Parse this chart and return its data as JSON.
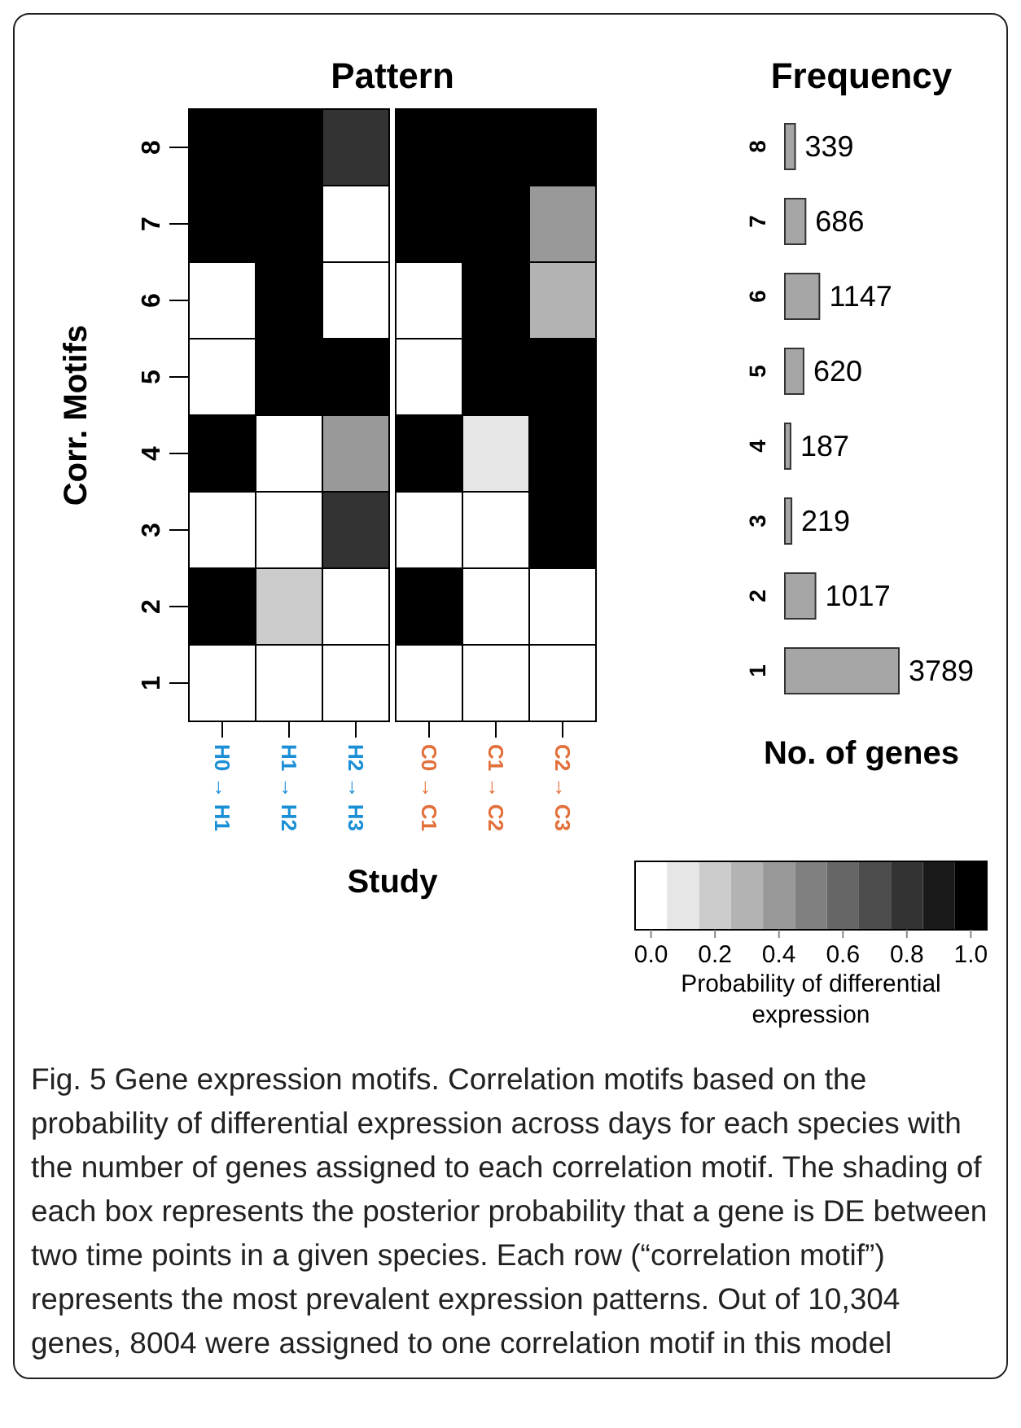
{
  "chart_data": [
    {
      "type": "heatmap",
      "title": "Pattern",
      "xlabel": "Study",
      "ylabel": "Corr. Motifs",
      "categories": [
        "H0 → H1",
        "H1 → H2",
        "H2 → H3",
        "C0 → C1",
        "C1 → C2",
        "C2 → C3"
      ],
      "y_categories": [
        "8",
        "7",
        "6",
        "5",
        "4",
        "3",
        "2",
        "1"
      ],
      "cells": [
        [
          1,
          1,
          0.8,
          1,
          1,
          1
        ],
        [
          1,
          1,
          0,
          1,
          1,
          0.4
        ],
        [
          0,
          1,
          0,
          0,
          1,
          0.3
        ],
        [
          0,
          1,
          1,
          0,
          1,
          1
        ],
        [
          1,
          0,
          0.4,
          1,
          0.1,
          1
        ],
        [
          0,
          0,
          0.8,
          0,
          0,
          1
        ],
        [
          1,
          0.2,
          0,
          1,
          0,
          0
        ],
        [
          0,
          0,
          0,
          0,
          0,
          0
        ]
      ],
      "clim": [
        -0.05,
        1.05
      ],
      "cticks": [
        {
          "value": 0,
          "label": "0.0"
        },
        0.2,
        0.4,
        0.6,
        0.8,
        {
          "value": 1,
          "label": "1.0"
        }
      ],
      "clabel": "Probability of differential expression"
    },
    {
      "type": "bar",
      "orientation": "horizontal",
      "title": "Frequency",
      "xlabel": "No. of genes",
      "tick_labels": "y",
      "categories": [
        "8",
        "7",
        "6",
        "5",
        "4",
        "3",
        "2",
        "1"
      ],
      "values": [
        339,
        686,
        1147,
        620,
        187,
        219,
        1017,
        3789
      ],
      "color": "#a6a6a6",
      "data_labels": true,
      "annotations": [
        "Fig. 5 Gene expression motifs. Correlation motifs based on the probability of differential expression across days for each species with the number of genes assigned to each correlation motif. The shading of each box represents the posterior probability that a gene is DE between two time points in a given species. Each row (“correlation motif”) represents the most prevalent expression patterns. Out of 10,304 genes, 8004 were assigned to one correlation motif in this model"
      ]
    }
  ]
}
